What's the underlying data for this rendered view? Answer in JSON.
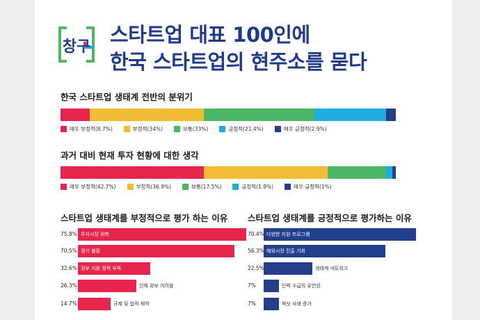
{
  "header": {
    "logo_text": "창구",
    "title_line1": "스타트업 대표 100인에",
    "title_line2": "한국 스타트업의 현주소를 묻다"
  },
  "colors": {
    "very_negative": "#e8264d",
    "negative": "#f2bc35",
    "neutral": "#4cb866",
    "positive": "#21ace0",
    "very_positive": "#233f8c",
    "navy_text": "#1e3a8a"
  },
  "chart_data": [
    {
      "type": "bar",
      "stacked": true,
      "orientation": "horizontal",
      "title": "한국 스타트업 생태계 전반의 분위기",
      "legend_position": "bottom",
      "series": [
        {
          "name": "매우 부정적",
          "value": 8.7,
          "label": "매우 부정적(8.7%)"
        },
        {
          "name": "부정적",
          "value": 34,
          "label": "부정적(34%)"
        },
        {
          "name": "보통",
          "value": 33,
          "label": "보통(33%)"
        },
        {
          "name": "긍정적",
          "value": 21.4,
          "label": "긍정적(21.4%)"
        },
        {
          "name": "매우 긍정적",
          "value": 2.9,
          "label": "매우 긍정적(2.9%)"
        }
      ]
    },
    {
      "type": "bar",
      "stacked": true,
      "orientation": "horizontal",
      "title": "과거 대비 현재 투자 현황에 대한 생각",
      "legend_position": "bottom",
      "series": [
        {
          "name": "매우 부정적",
          "value": 42.7,
          "label": "매우 부정적(42.7%)"
        },
        {
          "name": "부정적",
          "value": 36.9,
          "label": "부정적(36.9%)"
        },
        {
          "name": "보통",
          "value": 17.5,
          "label": "보통(17.5%)"
        },
        {
          "name": "긍정적",
          "value": 1.9,
          "label": "긍정적(1.9%)"
        },
        {
          "name": "매우 긍정적",
          "value": 1,
          "label": "매우 긍정적(1%)"
        }
      ]
    },
    {
      "type": "bar",
      "orientation": "horizontal",
      "title": "스타트업 생태계를 부정적으로 평가 하는 이유",
      "categories": [
        "투자시장 위축",
        "경기 불황",
        "정부 지원 정책 부족",
        "인재 확보 어려움",
        "규제 및 법적 제약"
      ],
      "values": [
        75.8,
        70.5,
        32.6,
        26.3,
        14.7
      ],
      "value_labels": [
        "75.8%",
        "70.5%",
        "32.6%",
        "26.3%",
        "14.7%"
      ]
    },
    {
      "type": "bar",
      "orientation": "horizontal",
      "title": "스타트업 생태계를 긍정적으로 평가하는 이유",
      "categories": [
        "다양한 지원 프로그램",
        "해외시장 진출 기회",
        "생태계 네트워크",
        "인력 수급의 유연성",
        "엑싯 사례 증가"
      ],
      "values": [
        70.4,
        56.3,
        22.5,
        7,
        7
      ],
      "value_labels": [
        "70.4%",
        "56.3%",
        "22.5%",
        "7%",
        "7%"
      ]
    }
  ]
}
